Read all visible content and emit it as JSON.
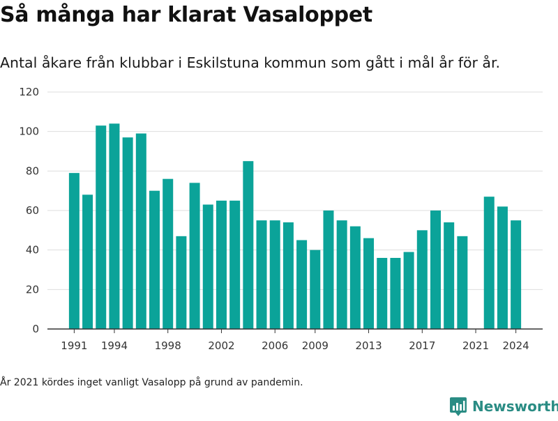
{
  "title": "Så många har klarat Vasaloppet",
  "subtitle": "Antal åkare från klubbar i Eskilstuna kommun som gått i mål år för år.",
  "footnote": "År 2021 kördes inget vanligt Vasalopp på grund av pandemin.",
  "brand": {
    "name": "Newsworthy",
    "icon": "newsworthy-logo-icon",
    "color": "#2a8c84"
  },
  "colors": {
    "bar": "#0ba399",
    "grid": "#dddddd",
    "axis": "#333333",
    "tick_text": "#333333"
  },
  "chart_data": {
    "type": "bar",
    "title": "Så många har klarat Vasaloppet",
    "subtitle": "Antal åkare från klubbar i Eskilstuna kommun som gått i mål år för år.",
    "xlabel": "",
    "ylabel": "",
    "ylim": [
      0,
      120
    ],
    "yticks": [
      0,
      20,
      40,
      60,
      80,
      100,
      120
    ],
    "xticks": [
      1991,
      1994,
      1998,
      2002,
      2006,
      2009,
      2013,
      2017,
      2021,
      2024
    ],
    "xlim": [
      1989,
      2026
    ],
    "grid": true,
    "categories": [
      1991,
      1992,
      1993,
      1994,
      1995,
      1996,
      1997,
      1998,
      1999,
      2000,
      2001,
      2002,
      2003,
      2004,
      2005,
      2006,
      2007,
      2008,
      2009,
      2010,
      2011,
      2012,
      2013,
      2014,
      2015,
      2016,
      2017,
      2018,
      2019,
      2020,
      2021,
      2022,
      2023,
      2024
    ],
    "values": [
      79,
      68,
      103,
      104,
      97,
      99,
      70,
      76,
      47,
      74,
      63,
      65,
      65,
      85,
      55,
      55,
      54,
      45,
      40,
      60,
      55,
      52,
      46,
      36,
      36,
      39,
      50,
      60,
      54,
      47,
      null,
      67,
      62,
      55
    ]
  }
}
